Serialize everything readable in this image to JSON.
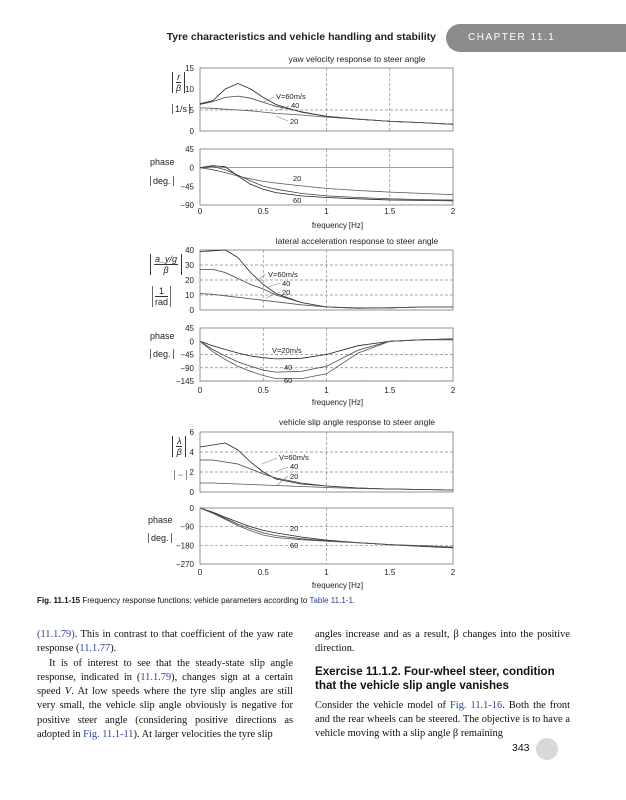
{
  "header": {
    "running_title": "Tyre characteristics and vehicle handling and stability",
    "chapter_tab": "CHAPTER 11.1",
    "tab_color": "#8c8c8c"
  },
  "figure": {
    "caption_label": "Fig. 11.1-15",
    "caption_text": " Frequency response functions; vehicle parameters according to ",
    "caption_link": "Table 11.1-1",
    "caption_end": "."
  },
  "chart_data": [
    {
      "type": "line",
      "title": "yaw velocity response to steer angle",
      "panels": [
        {
          "ylabel_num": "r",
          "ylabel_den": "β",
          "yunit": "1/s",
          "yticks": [
            0,
            5,
            10,
            15
          ],
          "ylim": [
            0,
            15
          ],
          "x": [
            0,
            0.1,
            0.2,
            0.3,
            0.4,
            0.5,
            0.6,
            0.8,
            1.0,
            1.25,
            1.5,
            1.75,
            2
          ],
          "series": [
            {
              "name": "V=60m/s",
              "values": [
                6.5,
                7.2,
                10,
                11.3,
                10,
                8,
                6.3,
                4.5,
                3.5,
                2.8,
                2.3,
                2.0,
                1.6
              ]
            },
            {
              "name": "40",
              "values": [
                6.3,
                7,
                8,
                8.3,
                7.8,
                6.8,
                5.9,
                4.6,
                3.5,
                2.8,
                2.3,
                2.0,
                1.6
              ]
            },
            {
              "name": "20",
              "values": [
                5.5,
                5.4,
                5.2,
                5.0,
                4.8,
                4.5,
                4.2,
                3.8,
                3.3,
                2.8,
                2.3,
                2.0,
                1.6
              ]
            }
          ]
        },
        {
          "ylabel": "phase",
          "yunit": "deg.",
          "yticks": [
            -90,
            -45,
            0,
            45
          ],
          "ylim": [
            -90,
            45
          ],
          "x": [
            0,
            0.1,
            0.2,
            0.3,
            0.4,
            0.5,
            0.6,
            0.8,
            1.0,
            1.25,
            1.5,
            1.75,
            2
          ],
          "series": [
            {
              "name": "60",
              "values": [
                0,
                5,
                2,
                -20,
                -40,
                -52,
                -60,
                -68,
                -72,
                -75,
                -78,
                -79,
                -80
              ]
            },
            {
              "name": "",
              "values": [
                0,
                3,
                -5,
                -18,
                -32,
                -45,
                -52,
                -62,
                -68,
                -72,
                -75,
                -77,
                -78
              ]
            },
            {
              "name": "20",
              "values": [
                0,
                -5,
                -12,
                -20,
                -27,
                -33,
                -37,
                -44,
                -50,
                -55,
                -59,
                -62,
                -65
              ]
            }
          ]
        }
      ],
      "xlabel": "frequency",
      "xunit": "Hz",
      "xticks": [
        "0",
        "0.5",
        "1",
        "1.5",
        "2"
      ],
      "xlim": [
        0,
        2
      ]
    },
    {
      "type": "line",
      "title": "lateral acceleration response to steer angle",
      "panels": [
        {
          "ylabel_num": "a_y/g",
          "ylabel_den": "β",
          "yunit_num": "1",
          "yunit_den": "rad",
          "yticks": [
            0,
            10,
            20,
            30,
            40
          ],
          "ylim": [
            0,
            40
          ],
          "x": [
            0,
            0.1,
            0.2,
            0.3,
            0.4,
            0.5,
            0.6,
            0.8,
            1.0,
            1.25,
            1.5,
            1.75,
            2
          ],
          "series": [
            {
              "name": "V=60m/s",
              "values": [
                39,
                39.5,
                40,
                35,
                25,
                17,
                11,
                5,
                2,
                1.2,
                1.5,
                2,
                2
              ]
            },
            {
              "name": "40",
              "values": [
                27,
                27,
                25,
                21,
                17,
                14,
                10,
                5,
                2,
                1.2,
                1.5,
                2,
                2
              ]
            },
            {
              "name": "20",
              "values": [
                11,
                10.5,
                9.5,
                8.5,
                7.5,
                6.5,
                5.5,
                3.5,
                2,
                1.5,
                1.5,
                2,
                2
              ]
            }
          ]
        },
        {
          "ylabel": "phase",
          "yunit": "deg.",
          "yticks": [
            -145,
            -90,
            -45,
            0,
            45
          ],
          "ylim": [
            -145,
            45
          ],
          "x": [
            0,
            0.1,
            0.2,
            0.3,
            0.4,
            0.5,
            0.6,
            0.8,
            1.0,
            1.25,
            1.5,
            1.75,
            2
          ],
          "series": [
            {
              "name": "V=20m/s",
              "values": [
                0,
                -15,
                -28,
                -40,
                -50,
                -56,
                -60,
                -58,
                -45,
                -15,
                0,
                5,
                8
              ]
            },
            {
              "name": "40",
              "values": [
                0,
                -28,
                -50,
                -70,
                -85,
                -100,
                -108,
                -105,
                -85,
                -30,
                0,
                5,
                8
              ]
            },
            {
              "name": "60",
              "values": [
                0,
                -35,
                -62,
                -85,
                -105,
                -122,
                -135,
                -135,
                -115,
                -40,
                0,
                5,
                5
              ]
            }
          ]
        }
      ],
      "xlabel": "frequency",
      "xunit": "Hz",
      "xticks": [
        "0",
        "0.5",
        "1",
        "1.5",
        "2"
      ],
      "xlim": [
        0,
        2
      ]
    },
    {
      "type": "line",
      "title": "vehicle slip angle response to steer angle",
      "panels": [
        {
          "ylabel_num": "λ",
          "ylabel_den": "β",
          "yunit": "−",
          "yticks": [
            0,
            2,
            4,
            6
          ],
          "ylim": [
            0,
            6
          ],
          "x": [
            0,
            0.1,
            0.2,
            0.3,
            0.4,
            0.5,
            0.6,
            0.8,
            1.0,
            1.25,
            1.5,
            1.75,
            2
          ],
          "series": [
            {
              "name": "V=60m/s",
              "values": [
                4.5,
                4.7,
                4.9,
                4.2,
                3,
                2,
                1.3,
                0.8,
                0.6,
                0.4,
                0.3,
                0.25,
                0.2
              ]
            },
            {
              "name": "40",
              "values": [
                3.2,
                3.2,
                3.0,
                2.8,
                2.3,
                1.8,
                1.4,
                0.9,
                0.6,
                0.4,
                0.3,
                0.25,
                0.2
              ]
            },
            {
              "name": "20",
              "values": [
                0.9,
                0.9,
                0.85,
                0.8,
                0.75,
                0.7,
                0.65,
                0.55,
                0.45,
                0.35,
                0.3,
                0.25,
                0.2
              ]
            }
          ]
        },
        {
          "ylabel": "phase",
          "yunit": "deg.",
          "yticks": [
            -270,
            -180,
            -90,
            0
          ],
          "ylim": [
            -270,
            0
          ],
          "x": [
            0,
            0.1,
            0.2,
            0.3,
            0.4,
            0.5,
            0.6,
            0.8,
            1.0,
            1.25,
            1.5,
            1.75,
            2
          ],
          "series": [
            {
              "name": "20",
              "values": [
                0,
                -20,
                -45,
                -68,
                -90,
                -108,
                -120,
                -140,
                -155,
                -167,
                -177,
                -185,
                -192
              ]
            },
            {
              "name": "",
              "values": [
                0,
                -22,
                -50,
                -78,
                -100,
                -120,
                -133,
                -148,
                -158,
                -167,
                -177,
                -184,
                -190
              ]
            },
            {
              "name": "60",
              "values": [
                0,
                -25,
                -55,
                -85,
                -110,
                -130,
                -142,
                -153,
                -160,
                -168,
                -176,
                -182,
                -188
              ]
            }
          ]
        }
      ],
      "xlabel": "frequency",
      "xunit": "Hz",
      "xticks": [
        "0",
        "0.5",
        "1",
        "1.5",
        "2"
      ],
      "xlim": [
        0,
        2
      ]
    }
  ],
  "body": {
    "left_p1_a": "(11.1.79)",
    "left_p1_b": ". This in contrast to that coefficient of the yaw rate response (",
    "left_p1_c": "11.1.77",
    "left_p1_d": ").",
    "left_p2_a": "It is of interest to see that the steady-state slip angle response, indicated in (",
    "left_p2_b": "11.1.79",
    "left_p2_c": "), changes sign at a certain speed ",
    "left_p2_v": "V",
    "left_p2_d": ". At low speeds where the tyre slip angles are still very small, the vehicle slip angle obviously is negative for positive steer angle (considering positive directions as adopted in ",
    "left_p2_e": "Fig. 11.1-11",
    "left_p2_f": "). At larger velocities the tyre slip",
    "right_p1": "angles increase and as a result, β changes into the positive direction.",
    "exercise_heading": "Exercise 11.1.2. Four-wheel steer, condition that the vehicle slip angle vanishes",
    "right_p2_a": "Consider the vehicle model of ",
    "right_p2_b": "Fig. 11.1-16",
    "right_p2_c": ". Both the front and the rear wheels can be steered. The objective is to have a vehicle moving with a slip angle β remaining"
  },
  "page_number": "343"
}
